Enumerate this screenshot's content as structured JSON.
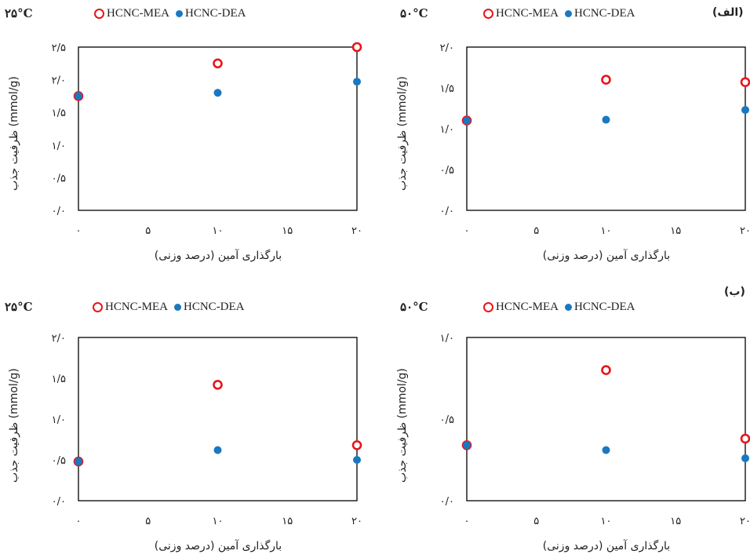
{
  "section_labels": [
    "(الف)",
    "(ب)"
  ],
  "legend": {
    "mea": "HCNC-MEA",
    "dea": "HCNC-DEA"
  },
  "colors": {
    "mea": "#e8151b",
    "dea": "#1a78c2"
  },
  "ylabel": "ظرفیت جذب (mmol/g)",
  "xlabel": "بارگذاری آمین (درصد وزنی)",
  "chart_data": [
    {
      "type": "scatter",
      "temperature": "۲۵°C",
      "xlim": [
        0,
        20
      ],
      "ylim": [
        0,
        2.5
      ],
      "xticks": [
        "۰",
        "۵",
        "۱۰",
        "۱۵",
        "۲۰"
      ],
      "yticks": [
        "۰/۰",
        "۰/۵",
        "۱/۰",
        "۱/۵",
        "۲/۰",
        "۲/۵"
      ],
      "ytick_values": [
        0,
        0.5,
        1.0,
        1.5,
        2.0,
        2.5
      ],
      "x": [
        0,
        10,
        20
      ],
      "series": [
        {
          "name": "HCNC-MEA",
          "values": [
            1.75,
            2.25,
            2.5
          ]
        },
        {
          "name": "HCNC-DEA",
          "values": [
            1.75,
            1.8,
            1.97
          ]
        }
      ]
    },
    {
      "type": "scatter",
      "temperature": "۵۰°C",
      "xlim": [
        0,
        20
      ],
      "ylim": [
        0,
        2.0
      ],
      "xticks": [
        "۰",
        "۵",
        "۱۰",
        "۱۵",
        "۲۰"
      ],
      "yticks": [
        "۰/۰",
        "۰/۵",
        "۱/۰",
        "۱/۵",
        "۲/۰"
      ],
      "ytick_values": [
        0,
        0.5,
        1.0,
        1.5,
        2.0
      ],
      "x": [
        0,
        10,
        20
      ],
      "series": [
        {
          "name": "HCNC-MEA",
          "values": [
            1.1,
            1.6,
            1.57
          ]
        },
        {
          "name": "HCNC-DEA",
          "values": [
            1.1,
            1.11,
            1.23
          ]
        }
      ]
    },
    {
      "type": "scatter",
      "temperature": "۲۵°C",
      "xlim": [
        0,
        20
      ],
      "ylim": [
        0,
        2.0
      ],
      "xticks": [
        "۰",
        "۵",
        "۱۰",
        "۱۵",
        "۲۰"
      ],
      "yticks": [
        "۰/۰",
        "۰/۵",
        "۱/۰",
        "۱/۵",
        "۲/۰"
      ],
      "ytick_values": [
        0,
        0.5,
        1.0,
        1.5,
        2.0
      ],
      "x": [
        0,
        10,
        20
      ],
      "series": [
        {
          "name": "HCNC-MEA",
          "values": [
            0.48,
            1.42,
            0.68
          ]
        },
        {
          "name": "HCNC-DEA",
          "values": [
            0.48,
            0.62,
            0.5
          ]
        }
      ]
    },
    {
      "type": "scatter",
      "temperature": "۵۰°C",
      "xlim": [
        0,
        20
      ],
      "ylim": [
        0,
        1.0
      ],
      "xticks": [
        "۰",
        "۵",
        "۱۰",
        "۱۵",
        "۲۰"
      ],
      "yticks": [
        "۰/۰",
        "۰/۵",
        "۱/۰"
      ],
      "ytick_values": [
        0,
        0.5,
        1.0
      ],
      "x": [
        0,
        10,
        20
      ],
      "series": [
        {
          "name": "HCNC-MEA",
          "values": [
            0.34,
            0.8,
            0.38
          ]
        },
        {
          "name": "HCNC-DEA",
          "values": [
            0.34,
            0.31,
            0.26
          ]
        }
      ]
    }
  ]
}
